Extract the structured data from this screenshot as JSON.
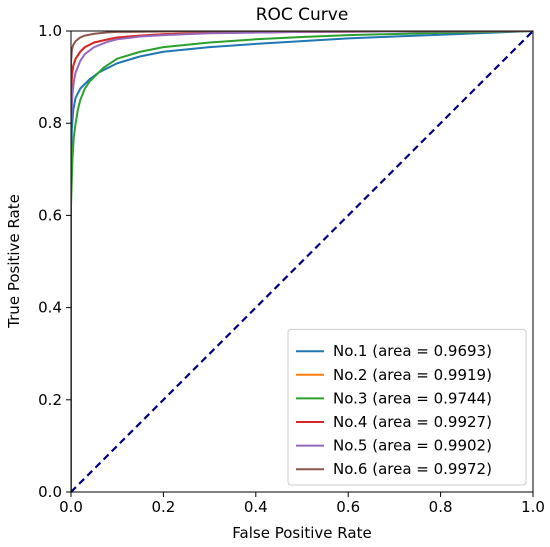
{
  "chart_data": {
    "type": "line",
    "title": "ROC Curve",
    "xlabel": "False Positive Rate",
    "ylabel": "True Positive Rate",
    "xlim": [
      0.0,
      1.0
    ],
    "ylim": [
      0.0,
      1.0
    ],
    "xticks": [
      "0.0",
      "0.2",
      "0.4",
      "0.6",
      "0.8",
      "1.0"
    ],
    "yticks": [
      "0.0",
      "0.2",
      "0.4",
      "0.6",
      "0.8",
      "1.0"
    ],
    "grid": false,
    "legend_position": "lower-right",
    "diagonal": {
      "x": [
        0,
        1
      ],
      "y": [
        0,
        1
      ],
      "color": "#000080",
      "style": "dashed"
    },
    "series": [
      {
        "name": "No.1 (area = 0.9693)",
        "color": "#1f77b4",
        "x": [
          0,
          0.0,
          0.002,
          0.005,
          0.01,
          0.02,
          0.04,
          0.06,
          0.08,
          0.1,
          0.15,
          0.2,
          0.3,
          0.4,
          0.5,
          0.6,
          0.7,
          0.8,
          0.9,
          1.0
        ],
        "y": [
          0,
          0.72,
          0.79,
          0.83,
          0.855,
          0.875,
          0.895,
          0.91,
          0.92,
          0.93,
          0.945,
          0.955,
          0.965,
          0.972,
          0.978,
          0.984,
          0.988,
          0.992,
          0.996,
          1.0
        ]
      },
      {
        "name": "No.2 (area = 0.9919)",
        "color": "#ff7f0e",
        "x": [
          0,
          0.0,
          0.002,
          0.005,
          0.01,
          0.02,
          0.03,
          0.05,
          0.08,
          0.1,
          0.15,
          0.2,
          0.3,
          0.5,
          0.7,
          1.0
        ],
        "y": [
          0,
          0.85,
          0.9,
          0.925,
          0.94,
          0.955,
          0.965,
          0.975,
          0.982,
          0.986,
          0.99,
          0.993,
          0.996,
          0.998,
          0.999,
          1.0
        ]
      },
      {
        "name": "No.3 (area = 0.9744)",
        "color": "#2ca02c",
        "x": [
          0,
          0.0,
          0.003,
          0.006,
          0.01,
          0.015,
          0.02,
          0.03,
          0.04,
          0.05,
          0.07,
          0.1,
          0.15,
          0.2,
          0.3,
          0.4,
          0.5,
          0.6,
          0.8,
          1.0
        ],
        "y": [
          0,
          0.62,
          0.72,
          0.77,
          0.8,
          0.83,
          0.85,
          0.875,
          0.89,
          0.9,
          0.92,
          0.94,
          0.955,
          0.965,
          0.975,
          0.982,
          0.987,
          0.991,
          0.996,
          1.0
        ]
      },
      {
        "name": "No.4 (area = 0.9927)",
        "color": "#d62728",
        "x": [
          0,
          0.0,
          0.002,
          0.005,
          0.01,
          0.02,
          0.03,
          0.05,
          0.08,
          0.1,
          0.15,
          0.2,
          0.3,
          0.5,
          0.7,
          1.0
        ],
        "y": [
          0,
          0.86,
          0.905,
          0.925,
          0.94,
          0.955,
          0.965,
          0.975,
          0.982,
          0.986,
          0.99,
          0.993,
          0.996,
          0.998,
          0.999,
          1.0
        ]
      },
      {
        "name": "No.5 (area = 0.9902)",
        "color": "#9467bd",
        "x": [
          0,
          0.0,
          0.003,
          0.006,
          0.01,
          0.02,
          0.03,
          0.05,
          0.08,
          0.1,
          0.15,
          0.2,
          0.3,
          0.5,
          0.7,
          1.0
        ],
        "y": [
          0,
          0.8,
          0.86,
          0.89,
          0.91,
          0.935,
          0.95,
          0.965,
          0.977,
          0.982,
          0.988,
          0.991,
          0.995,
          0.998,
          0.999,
          1.0
        ]
      },
      {
        "name": "No.6 (area = 0.9972)",
        "color": "#8c564b",
        "x": [
          0,
          0.0,
          0.002,
          0.005,
          0.01,
          0.02,
          0.03,
          0.05,
          0.08,
          0.1,
          0.2,
          0.4,
          0.7,
          1.0
        ],
        "y": [
          0,
          0.93,
          0.96,
          0.97,
          0.978,
          0.986,
          0.99,
          0.994,
          0.997,
          0.998,
          0.999,
          1.0,
          1.0,
          1.0
        ]
      }
    ]
  }
}
